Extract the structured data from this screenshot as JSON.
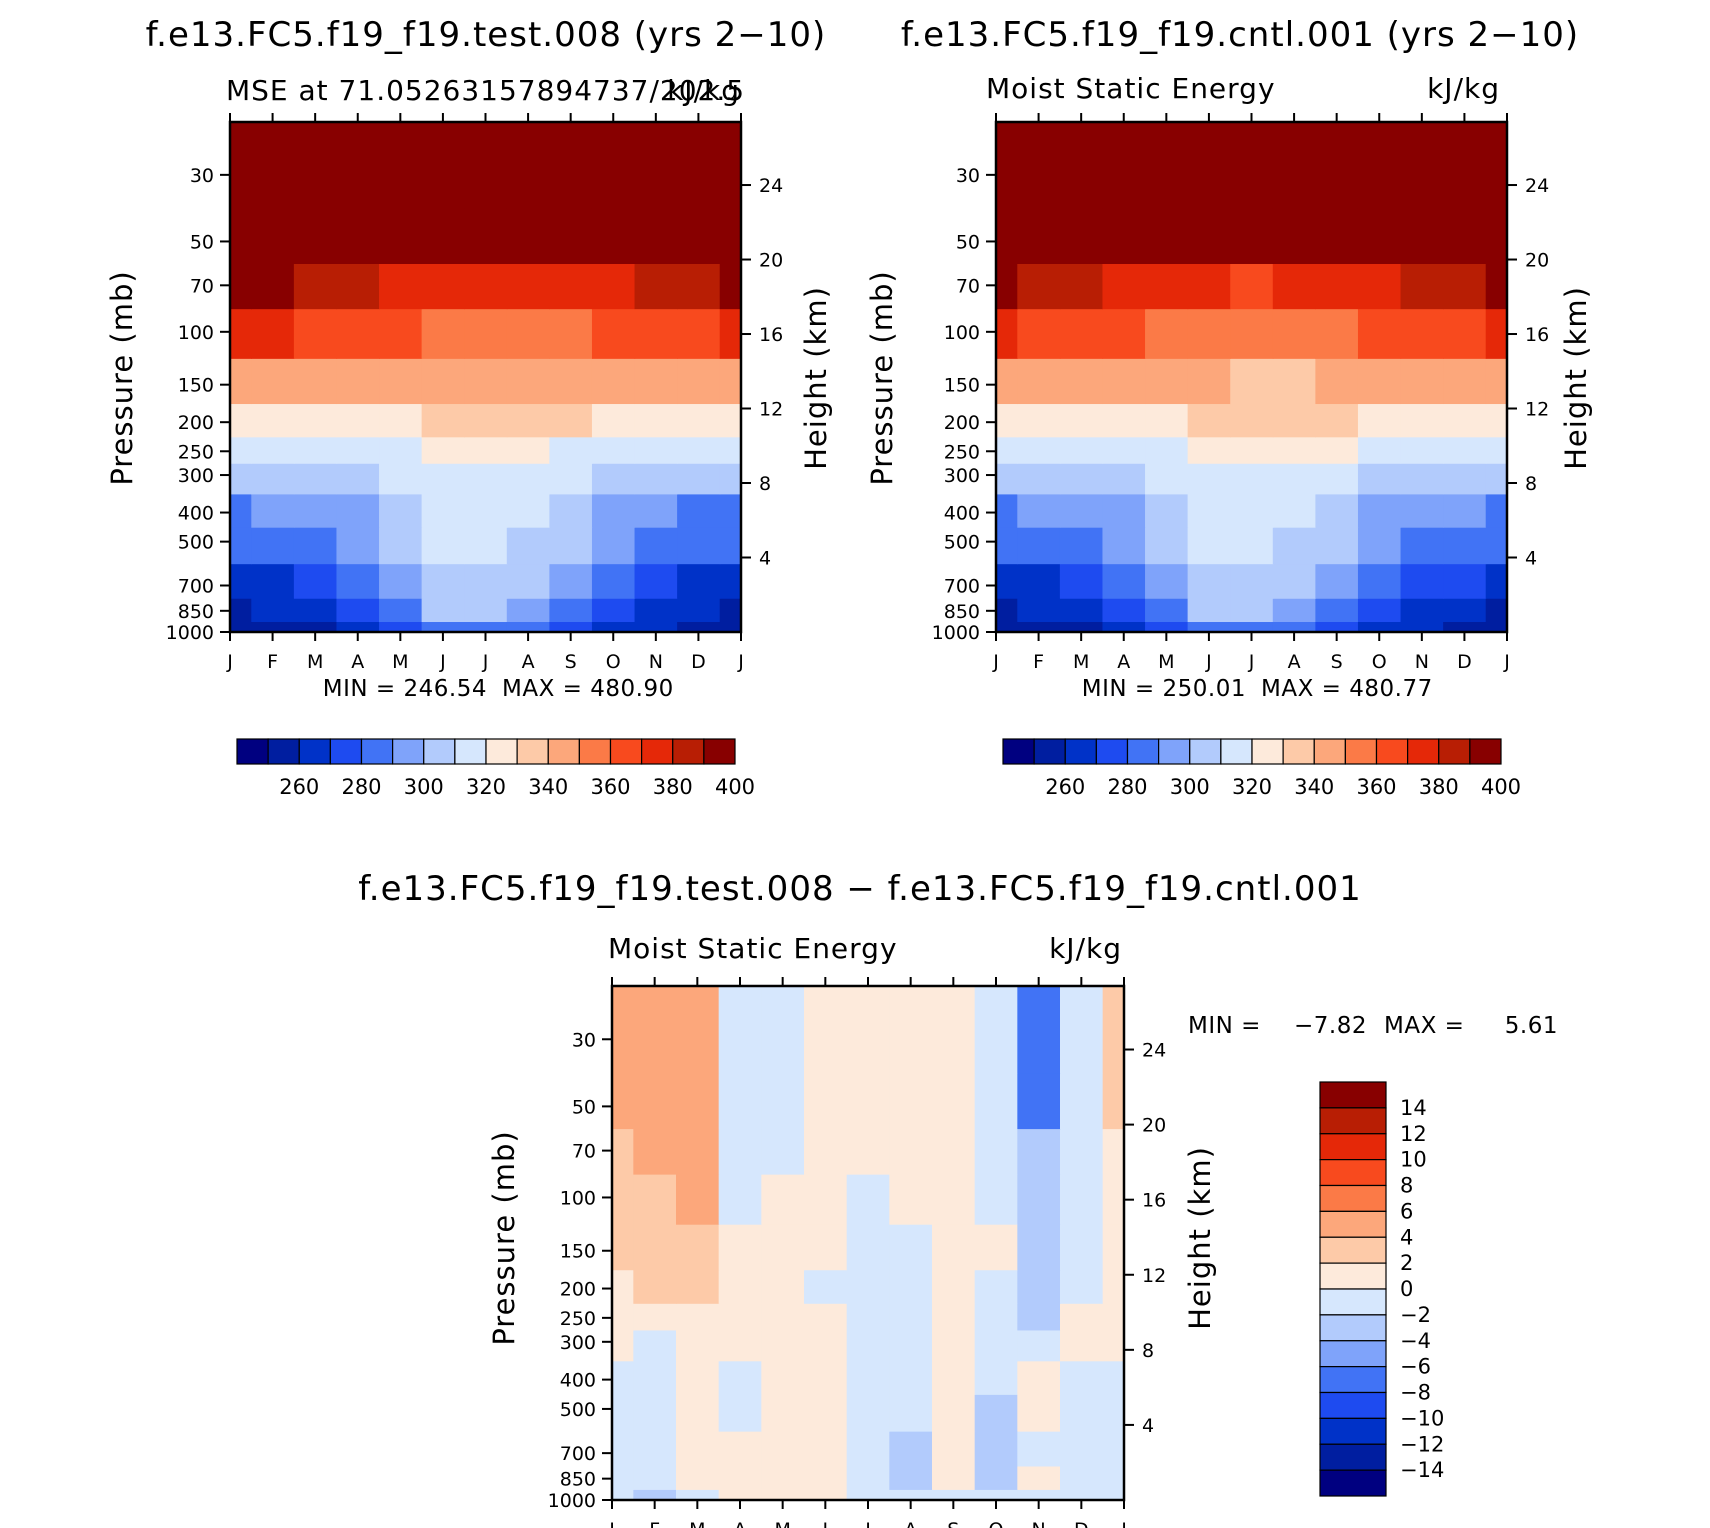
{
  "figure": {
    "top_left_title": "f.e13.FC5.f19_f19.test.008 (yrs 2−10)",
    "top_right_title": "f.e13.FC5.f19_f19.cntl.001 (yrs 2−10)",
    "bottom_title": "f.e13.FC5.f19_f19.test.008 − f.e13.FC5.f19_f19.cntl.001"
  },
  "colors": {
    "absolute_scale": [
      "#000080",
      "#001ea0",
      "#0032c8",
      "#1e4bf0",
      "#4173f5",
      "#7fa3fa",
      "#b2cbfc",
      "#d6e7fd",
      "#fdeadb",
      "#fdcaa8",
      "#fca77b",
      "#fb7a47",
      "#f84a1e",
      "#e52808",
      "#b81e04",
      "#880000"
    ],
    "difference_scale": [
      "#000080",
      "#001ea0",
      "#0032c8",
      "#1e4bf0",
      "#4173f5",
      "#7fa3fa",
      "#b2cbfc",
      "#d6e7fd",
      "#fdeadb",
      "#fdcaa8",
      "#fca77b",
      "#fb7a47",
      "#f84a1e",
      "#e52808",
      "#b81e04",
      "#880000"
    ]
  },
  "chart_data": [
    {
      "id": "test",
      "type": "heatmap",
      "subtitle_left": "MSE at 71.05263157894737/202.5",
      "subtitle_right": "kJ/kg",
      "xlabel": "",
      "ylabel": "Pressure (mb)",
      "ylabel_right": "Height (km)",
      "x_ticks": [
        "J",
        "F",
        "M",
        "A",
        "M",
        "J",
        "J",
        "A",
        "S",
        "O",
        "N",
        "D",
        "J"
      ],
      "y_ticks": [
        30,
        50,
        70,
        100,
        150,
        200,
        250,
        300,
        400,
        500,
        700,
        850,
        1000
      ],
      "y_ticks_right": [
        24,
        20,
        16,
        12,
        8,
        4
      ],
      "y_range": [
        1000,
        20
      ],
      "min_label": "MIN = 246.54",
      "max_label": "MAX = 480.90",
      "colorbar_labels": [
        "260",
        "280",
        "300",
        "320",
        "340",
        "360",
        "380",
        "400"
      ],
      "levels": [
        250,
        260,
        270,
        280,
        290,
        300,
        310,
        320,
        330,
        340,
        350,
        360,
        370,
        380,
        390,
        400
      ],
      "months": [
        "J",
        "F",
        "M",
        "A",
        "M",
        "J",
        "J",
        "A",
        "S",
        "O",
        "N",
        "D",
        "J"
      ],
      "pressure_levels": [
        1000,
        850,
        700,
        500,
        400,
        300,
        250,
        200,
        150,
        100,
        70,
        50,
        30
      ],
      "values": [
        [
          250,
          252,
          255,
          262,
          272,
          282,
          284,
          280,
          275,
          268,
          260,
          254,
          250
        ],
        [
          258,
          260,
          263,
          270,
          282,
          300,
          302,
          295,
          285,
          276,
          266,
          261,
          258
        ],
        [
          266,
          268,
          272,
          280,
          292,
          306,
          308,
          302,
          292,
          282,
          274,
          269,
          266
        ],
        [
          282,
          284,
          288,
          296,
          302,
          310,
          313,
          308,
          302,
          292,
          286,
          283,
          282
        ],
        [
          288,
          290,
          292,
          298,
          304,
          312,
          315,
          311,
          306,
          296,
          290,
          289,
          288
        ],
        [
          302,
          303,
          304,
          306,
          310,
          315,
          317,
          316,
          313,
          307,
          302,
          301,
          302
        ],
        [
          312,
          313,
          313,
          315,
          317,
          320,
          322,
          321,
          319,
          316,
          313,
          312,
          312
        ],
        [
          326,
          326,
          326,
          327,
          328,
          330,
          331,
          331,
          330,
          328,
          327,
          326,
          326
        ],
        [
          348,
          347,
          346,
          345,
          343,
          341,
          340,
          340,
          341,
          343,
          345,
          346,
          348
        ],
        [
          372,
          370,
          367,
          363,
          360,
          356,
          354,
          355,
          358,
          362,
          366,
          369,
          372
        ],
        [
          392,
          390,
          385,
          380,
          376,
          372,
          370,
          371,
          374,
          379,
          384,
          388,
          392
        ],
        [
          420,
          420,
          418,
          415,
          412,
          410,
          408,
          409,
          412,
          415,
          418,
          420,
          420
        ],
        [
          450,
          450,
          449,
          448,
          447,
          446,
          445,
          446,
          447,
          448,
          449,
          450,
          450
        ]
      ]
    },
    {
      "id": "cntl",
      "type": "heatmap",
      "subtitle_left": "Moist Static Energy",
      "subtitle_right": "kJ/kg",
      "xlabel": "",
      "ylabel": "Pressure (mb)",
      "ylabel_right": "Height (km)",
      "x_ticks": [
        "J",
        "F",
        "M",
        "A",
        "M",
        "J",
        "J",
        "A",
        "S",
        "O",
        "N",
        "D",
        "J"
      ],
      "y_ticks": [
        30,
        50,
        70,
        100,
        150,
        200,
        250,
        300,
        400,
        500,
        700,
        850,
        1000
      ],
      "y_ticks_right": [
        24,
        20,
        16,
        12,
        8,
        4
      ],
      "y_range": [
        1000,
        20
      ],
      "min_label": "MIN = 250.01",
      "max_label": "MAX = 480.77",
      "colorbar_labels": [
        "260",
        "280",
        "300",
        "320",
        "340",
        "360",
        "380",
        "400"
      ],
      "levels": [
        250,
        260,
        270,
        280,
        290,
        300,
        310,
        320,
        330,
        340,
        350,
        360,
        370,
        380,
        390,
        400
      ],
      "months": [
        "J",
        "F",
        "M",
        "A",
        "M",
        "J",
        "J",
        "A",
        "S",
        "O",
        "N",
        "D",
        "J"
      ],
      "pressure_levels": [
        1000,
        850,
        700,
        500,
        400,
        300,
        250,
        200,
        150,
        100,
        70,
        50,
        30
      ],
      "values": [
        [
          251,
          253,
          256,
          263,
          273,
          283,
          285,
          281,
          276,
          269,
          261,
          255,
          251
        ],
        [
          259,
          261,
          264,
          271,
          283,
          301,
          303,
          296,
          286,
          277,
          267,
          262,
          259
        ],
        [
          267,
          269,
          273,
          281,
          293,
          307,
          309,
          303,
          293,
          283,
          275,
          270,
          267
        ],
        [
          283,
          285,
          289,
          297,
          303,
          311,
          314,
          309,
          303,
          293,
          287,
          284,
          283
        ],
        [
          289,
          291,
          293,
          299,
          305,
          313,
          316,
          312,
          307,
          297,
          291,
          290,
          289
        ],
        [
          303,
          304,
          305,
          307,
          311,
          316,
          318,
          317,
          314,
          308,
          303,
          302,
          303
        ],
        [
          313,
          314,
          314,
          316,
          318,
          321,
          323,
          322,
          320,
          317,
          314,
          313,
          313
        ],
        [
          327,
          327,
          327,
          328,
          329,
          331,
          332,
          332,
          331,
          329,
          328,
          327,
          327
        ],
        [
          347,
          346,
          345,
          344,
          342,
          340,
          339,
          339,
          340,
          342,
          344,
          345,
          347
        ],
        [
          371,
          369,
          366,
          362,
          359,
          355,
          353,
          354,
          357,
          361,
          365,
          368,
          371
        ],
        [
          391,
          389,
          384,
          379,
          375,
          371,
          369,
          370,
          373,
          378,
          383,
          387,
          391
        ],
        [
          419,
          419,
          417,
          414,
          411,
          409,
          407,
          408,
          411,
          414,
          417,
          419,
          419
        ],
        [
          449,
          449,
          448,
          447,
          446,
          445,
          444,
          445,
          446,
          447,
          448,
          449,
          449
        ]
      ]
    },
    {
      "id": "diff",
      "type": "heatmap",
      "subtitle_left": "Moist Static Energy",
      "subtitle_right": "kJ/kg",
      "xlabel": "",
      "ylabel": "Pressure (mb)",
      "ylabel_right": "Height (km)",
      "x_ticks": [
        "J",
        "F",
        "M",
        "A",
        "M",
        "J",
        "J",
        "A",
        "S",
        "O",
        "N",
        "D",
        "J"
      ],
      "y_ticks": [
        30,
        50,
        70,
        100,
        150,
        200,
        250,
        300,
        400,
        500,
        700,
        850,
        1000
      ],
      "y_ticks_right": [
        24,
        20,
        16,
        12,
        8,
        4
      ],
      "y_range": [
        1000,
        20
      ],
      "min_label": "MIN =",
      "min_value": "−7.82",
      "max_label": "MAX =",
      "max_value": "5.61",
      "colorbar_labels": [
        "14",
        "12",
        "10",
        "8",
        "6",
        "4",
        "2",
        "0",
        "−2",
        "−4",
        "−6",
        "−8",
        "−10",
        "−12",
        "−14"
      ],
      "levels": [
        -14,
        -12,
        -10,
        -8,
        -6,
        -4,
        -2,
        0,
        2,
        4,
        6,
        8,
        10,
        12,
        14
      ],
      "months": [
        "J",
        "F",
        "M",
        "A",
        "M",
        "J",
        "J",
        "A",
        "S",
        "O",
        "N",
        "D",
        "J"
      ],
      "pressure_levels": [
        1000,
        850,
        700,
        500,
        400,
        300,
        250,
        200,
        150,
        100,
        70,
        50,
        30
      ],
      "values": [
        [
          -1.0,
          -2.5,
          -0.5,
          0.8,
          1.0,
          0.5,
          -0.5,
          -1.0,
          -0.8,
          -1.5,
          -0.5,
          -0.5,
          -1.0
        ],
        [
          -1.0,
          -1.0,
          0.5,
          0.8,
          1.0,
          0.5,
          -0.5,
          -2.5,
          0.5,
          -3.0,
          0.5,
          -0.5,
          -1.0
        ],
        [
          -1.0,
          -0.5,
          0.5,
          0.8,
          1.0,
          0.5,
          -0.5,
          -2.5,
          0.5,
          -3.0,
          -0.5,
          -0.5,
          -1.0
        ],
        [
          -1.0,
          -0.5,
          0.5,
          -0.5,
          1.0,
          0.5,
          -0.5,
          -2.0,
          0.5,
          -3.0,
          0.5,
          -0.5,
          -1.0
        ],
        [
          -0.5,
          -0.5,
          0.5,
          -0.5,
          1.0,
          0.5,
          -0.5,
          -2.0,
          0.5,
          -2.0,
          0.5,
          -0.5,
          -1.0
        ],
        [
          0.5,
          -0.5,
          0.5,
          0.8,
          1.0,
          0.5,
          -0.5,
          -0.5,
          0.5,
          -0.5,
          -0.5,
          0.5,
          0.5
        ],
        [
          0.5,
          0.5,
          0.5,
          0.8,
          0.5,
          0.5,
          -0.5,
          -0.5,
          0.5,
          -0.5,
          -2.5,
          0.5,
          0.5
        ],
        [
          1.0,
          2.0,
          3.0,
          0.5,
          0.5,
          -0.5,
          -0.5,
          -0.5,
          0.5,
          -0.5,
          -3.0,
          -0.5,
          0.5
        ],
        [
          2.0,
          2.5,
          3.0,
          0.5,
          0.5,
          0.5,
          -0.5,
          -0.5,
          0.5,
          0.5,
          -3.0,
          -0.5,
          0.5
        ],
        [
          2.0,
          2.5,
          4.0,
          -0.5,
          0.5,
          0.5,
          -0.5,
          0.5,
          0.5,
          -0.5,
          -3.5,
          -0.5,
          0.5
        ],
        [
          3.5,
          4.0,
          4.2,
          -0.5,
          -0.5,
          0.5,
          0.5,
          0.5,
          0.5,
          -0.5,
          -4.0,
          -0.5,
          0.5
        ],
        [
          4.0,
          4.5,
          4.5,
          -0.5,
          -0.5,
          0.5,
          0.5,
          0.5,
          0.5,
          -0.5,
          -6.5,
          -0.5,
          2.0
        ],
        [
          4.5,
          5.0,
          5.0,
          -0.5,
          -0.5,
          0.5,
          0.5,
          0.5,
          0.5,
          -2.0,
          -7.5,
          -1.0,
          2.5
        ]
      ]
    }
  ]
}
